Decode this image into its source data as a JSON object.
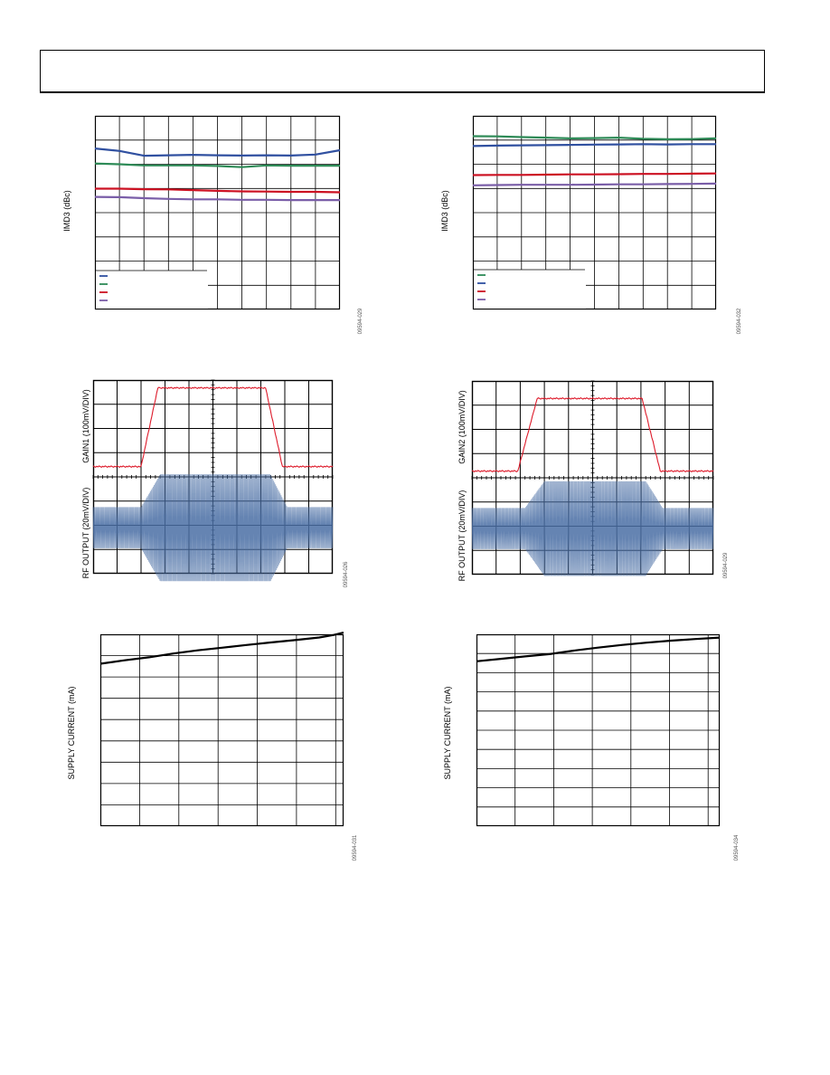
{
  "chart_data": [
    {
      "id": "imd-left",
      "type": "line",
      "ylabel": "IMD3 (dBc)",
      "figure_code": "09594-029",
      "xlim": [
        0,
        10
      ],
      "ylim": [
        0,
        8
      ],
      "grid": "on",
      "legend": "bottom-left",
      "series": [
        {
          "color": "#3050a0",
          "x": [
            0,
            1,
            2,
            3,
            4,
            5,
            6,
            7,
            8,
            9,
            10
          ],
          "y": [
            6.65,
            6.55,
            6.35,
            6.37,
            6.39,
            6.37,
            6.36,
            6.37,
            6.36,
            6.4,
            6.58
          ]
        },
        {
          "color": "#2e8b57",
          "x": [
            0,
            1,
            2,
            3,
            4,
            5,
            6,
            7,
            8,
            9,
            10
          ],
          "y": [
            6.03,
            6.0,
            5.95,
            5.95,
            5.95,
            5.93,
            5.88,
            5.95,
            5.94,
            5.94,
            5.94
          ]
        },
        {
          "color": "#cc1122",
          "x": [
            0,
            1,
            2,
            3,
            4,
            5,
            6,
            7,
            8,
            9,
            10
          ],
          "y": [
            4.99,
            4.99,
            4.97,
            4.96,
            4.93,
            4.9,
            4.88,
            4.87,
            4.86,
            4.86,
            4.84
          ]
        },
        {
          "color": "#7a5ea8",
          "x": [
            0,
            1,
            2,
            3,
            4,
            5,
            6,
            7,
            8,
            9,
            10
          ],
          "y": [
            4.65,
            4.64,
            4.6,
            4.57,
            4.55,
            4.55,
            4.53,
            4.53,
            4.52,
            4.52,
            4.52
          ]
        }
      ]
    },
    {
      "id": "imd-right",
      "type": "line",
      "ylabel": "IMD3 (dBc)",
      "figure_code": "09594-032",
      "xlim": [
        0,
        10
      ],
      "ylim": [
        0,
        8
      ],
      "grid": "on",
      "legend": "bottom-left",
      "series": [
        {
          "color": "#2e8b57",
          "x": [
            0,
            1,
            2,
            3,
            4,
            5,
            6,
            7,
            8,
            9,
            10
          ],
          "y": [
            7.16,
            7.15,
            7.12,
            7.1,
            7.07,
            7.08,
            7.1,
            7.05,
            7.03,
            7.04,
            7.07
          ]
        },
        {
          "color": "#3050a0",
          "x": [
            0,
            1,
            2,
            3,
            4,
            5,
            6,
            7,
            8,
            9,
            10
          ],
          "y": [
            6.75,
            6.77,
            6.78,
            6.79,
            6.8,
            6.81,
            6.82,
            6.83,
            6.82,
            6.83,
            6.83
          ]
        },
        {
          "color": "#cc1122",
          "x": [
            0,
            1,
            2,
            3,
            4,
            5,
            6,
            7,
            8,
            9,
            10
          ],
          "y": [
            5.55,
            5.56,
            5.56,
            5.57,
            5.58,
            5.58,
            5.59,
            5.6,
            5.6,
            5.61,
            5.62
          ]
        },
        {
          "color": "#7a5ea8",
          "x": [
            0,
            1,
            2,
            3,
            4,
            5,
            6,
            7,
            8,
            9,
            10
          ],
          "y": [
            5.13,
            5.14,
            5.15,
            5.15,
            5.15,
            5.16,
            5.17,
            5.17,
            5.18,
            5.19,
            5.2
          ]
        }
      ]
    },
    {
      "id": "scope-left",
      "type": "line",
      "ylabel_top": "GAIN1 (100mV/DIV)",
      "ylabel_bottom": "RF OUTPUT (20mV/DIV)",
      "figure_code": "09594-026",
      "xlim": [
        0,
        10
      ],
      "grid": "on",
      "gain_trace": {
        "low": 0.85,
        "high": 7.35,
        "rise_start": 2.0,
        "rise_end": 2.7,
        "fall_start": 7.2,
        "fall_end": 7.9
      },
      "rf_envelope": {
        "low_amp": 1.0,
        "high_amp": 2.6,
        "rise_start": 2.0,
        "rise_end": 2.8,
        "fall_start": 7.4,
        "fall_end": 8.1
      }
    },
    {
      "id": "scope-right",
      "type": "line",
      "ylabel_top": "GAIN2 (100mV/DIV)",
      "ylabel_bottom": "RF OUTPUT (20mV/DIV)",
      "figure_code": "09594-029",
      "xlim": [
        0,
        10
      ],
      "grid": "on",
      "gain_trace": {
        "low": 0.55,
        "high": 6.55,
        "rise_start": 1.9,
        "rise_end": 2.7,
        "fall_start": 7.05,
        "fall_end": 7.8
      },
      "rf_envelope": {
        "low_amp": 1.0,
        "high_amp": 2.3,
        "rise_start": 2.2,
        "rise_end": 3.0,
        "fall_start": 7.2,
        "fall_end": 7.9
      }
    },
    {
      "id": "supply-left",
      "type": "line",
      "ylabel": "SUPPLY CURRENT (mA)",
      "figure_code": "09594-031",
      "xlim": [
        0,
        10
      ],
      "ylim": [
        0,
        9
      ],
      "grid": "on",
      "series": [
        {
          "color": "#000000",
          "x": [
            0,
            1,
            2,
            3,
            4,
            5,
            6,
            7,
            8,
            9,
            9.6,
            10
          ],
          "y": [
            7.62,
            7.78,
            7.92,
            8.1,
            8.25,
            8.37,
            8.5,
            8.62,
            8.73,
            8.85,
            8.97,
            9.08
          ]
        }
      ]
    },
    {
      "id": "supply-right",
      "type": "line",
      "ylabel": "SUPPLY CURRENT (mA)",
      "figure_code": "09594-034",
      "xlim": [
        0,
        10
      ],
      "ylim": [
        0,
        9.4
      ],
      "grid": "on",
      "series": [
        {
          "color": "#000000",
          "x": [
            0,
            1,
            2,
            3,
            4,
            5,
            6,
            7,
            8,
            9,
            10
          ],
          "y": [
            8.08,
            8.2,
            8.32,
            8.43,
            8.6,
            8.75,
            8.88,
            8.99,
            9.09,
            9.17,
            9.24
          ]
        }
      ]
    }
  ]
}
